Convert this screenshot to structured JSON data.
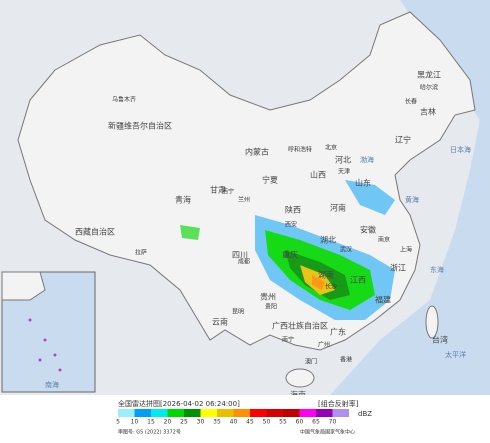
{
  "map": {
    "provinces": [
      "新疆维吾尔自治区",
      "西藏自治区",
      "青海",
      "甘肃",
      "内蒙古",
      "黑龙江",
      "吉林",
      "辽宁",
      "四川",
      "云南",
      "贵州",
      "广西壮族自治区",
      "广东",
      "湖南",
      "湖北",
      "河南",
      "山东",
      "安徽",
      "浙江",
      "福建",
      "江西",
      "陕西",
      "山西",
      "河北",
      "宁夏",
      "重庆",
      "台湾",
      "海南"
    ],
    "cities": [
      "乌鲁木齐",
      "拉萨",
      "西宁",
      "兰州",
      "成都",
      "昆明",
      "南宁",
      "广州",
      "哈尔滨",
      "长春",
      "呼和浩特",
      "北京",
      "天津",
      "上海",
      "南京",
      "武汉",
      "长沙",
      "贵阳",
      "西安",
      "香港",
      "澳门"
    ],
    "seas": [
      "日本海",
      "黄海",
      "东海",
      "太平洋",
      "渤海",
      "南海"
    ]
  },
  "legend": {
    "title": "全国雷达拼图[2026-04-02 06:24:00]",
    "product": "[组合反射率]",
    "unit": "dBZ",
    "ticks": [
      5,
      10,
      15,
      20,
      25,
      30,
      35,
      40,
      45,
      50,
      55,
      60,
      65,
      70
    ],
    "colors": [
      "#9ceefe",
      "#01a0f6",
      "#00ecec",
      "#00d800",
      "#019000",
      "#ffff00",
      "#e7c000",
      "#ff9000",
      "#ff0000",
      "#d60000",
      "#c00000",
      "#ff00f0",
      "#9600b4",
      "#ad90f0"
    ],
    "approval": "审图号: GS (2022) 3372号",
    "source": "中国气象局国家气象中心"
  }
}
